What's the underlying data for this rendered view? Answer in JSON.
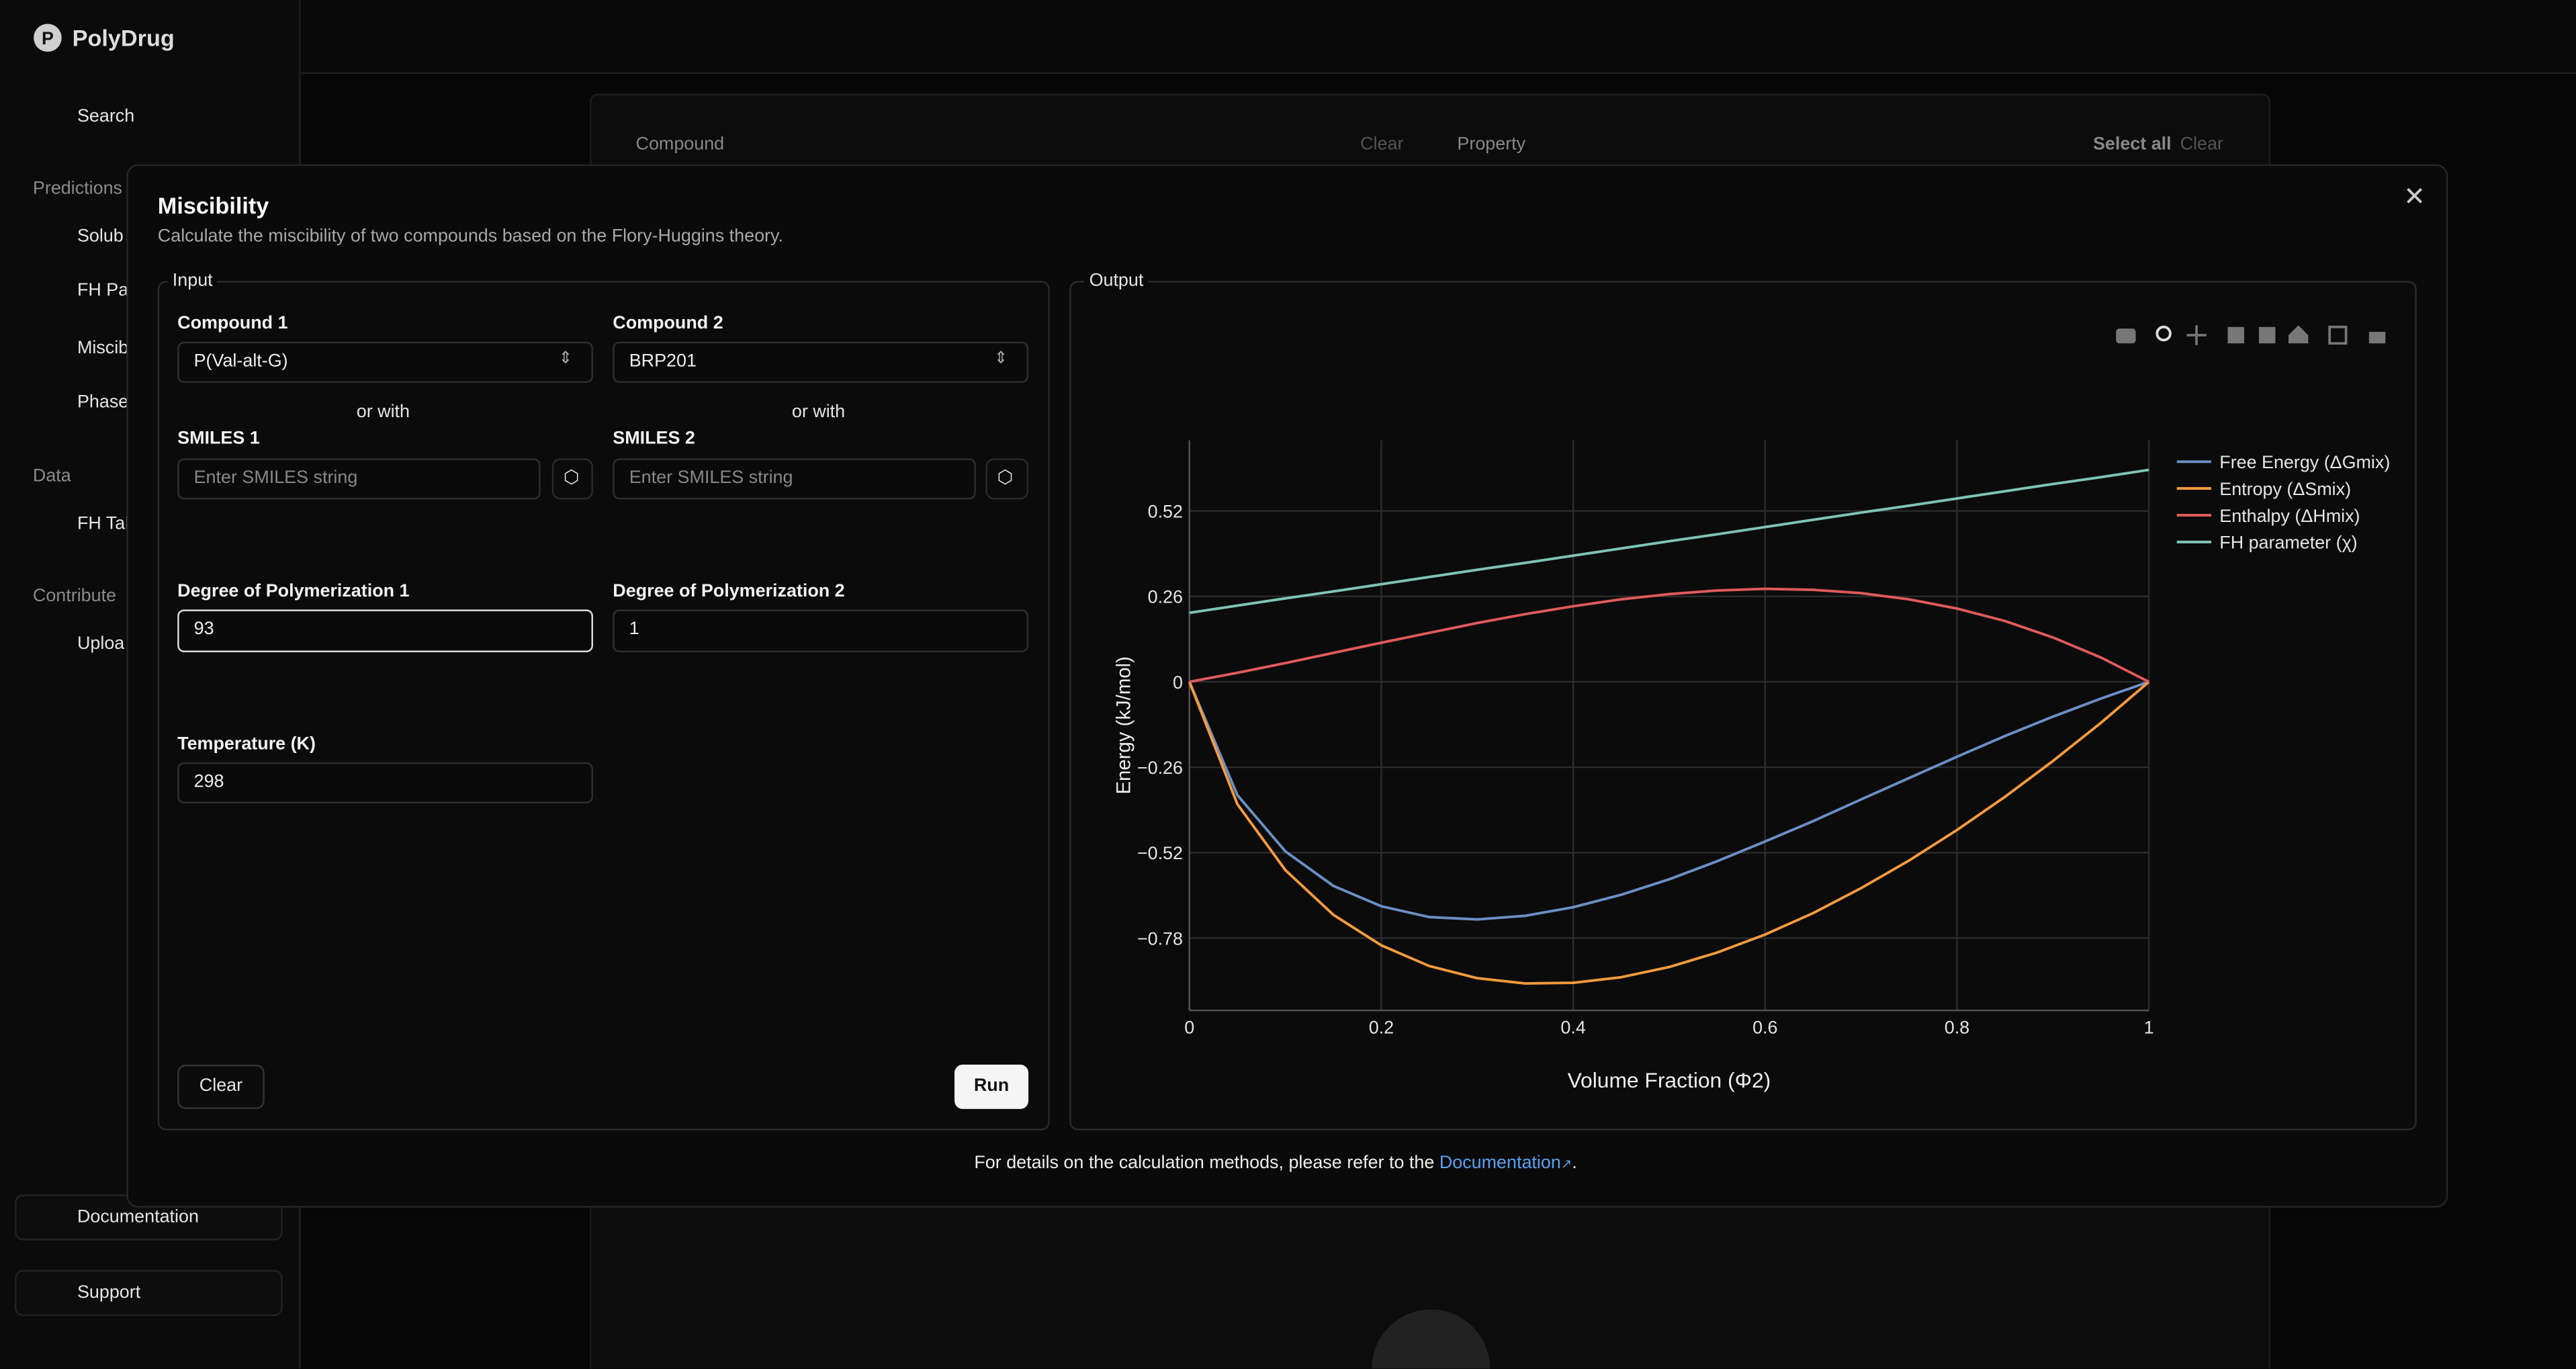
{
  "app": {
    "brand": "PolyDrug",
    "search": "Search",
    "predictions": "Predictions",
    "nav": [
      "Solub",
      "FH Pa",
      "Miscib",
      "Phase"
    ],
    "data": "Data",
    "data_nav": "FH Tal",
    "contribute": "Contribute",
    "upload": "Uploa",
    "documentation": "Documentation",
    "support": "Support"
  },
  "background": {
    "compound": "Compound",
    "clear_1": "Clear",
    "property": "Property",
    "select_all": "Select all",
    "clear_2": "Clear"
  },
  "modal": {
    "title": "Miscibility",
    "description": "Calculate the miscibility of two compounds based on the Flory-Huggins theory.",
    "input": "Input",
    "output": "Output",
    "compound_1": {
      "label": "Compound 1",
      "value": "P(Val-alt-G)"
    },
    "compound_2": {
      "label": "Compound 2",
      "value": "BRP201"
    },
    "or_with": "or with",
    "smiles_1": {
      "label": "SMILES 1",
      "placeholder": "Enter SMILES string"
    },
    "smiles_2": {
      "label": "SMILES 2",
      "placeholder": "Enter SMILES string"
    },
    "dop_1": {
      "label": "Degree of Polymerization 1",
      "value": "93"
    },
    "dop_2": {
      "label": "Degree of Polymerization 2",
      "value": "1"
    },
    "temperature": {
      "label": "Temperature (K)",
      "value": "298"
    },
    "clear": "Clear",
    "run": "Run",
    "footer": "For details on the calculation methods, please refer to the",
    "footer_link": "Documentation",
    "footer_end": "."
  },
  "chart_data": {
    "type": "line",
    "xlabel": "Volume Fraction (Φ2)",
    "ylabel": "Energy (kJ/mol)",
    "x": [
      0,
      0.05,
      0.1,
      0.15,
      0.2,
      0.25,
      0.3,
      0.35,
      0.4,
      0.45,
      0.5,
      0.55,
      0.6,
      0.65,
      0.7,
      0.75,
      0.8,
      0.85,
      0.9,
      0.95,
      1
    ],
    "series": [
      {
        "name": "Free Energy (ΔGmix)",
        "color": "#6b8fc4",
        "values": [
          0,
          -0.345,
          -0.516,
          -0.621,
          -0.683,
          -0.716,
          -0.723,
          -0.712,
          -0.686,
          -0.648,
          -0.601,
          -0.546,
          -0.486,
          -0.424,
          -0.358,
          -0.293,
          -0.228,
          -0.165,
          -0.106,
          -0.051,
          0
        ]
      },
      {
        "name": "Entropy (ΔSmix)",
        "color": "#f49a3c",
        "values": [
          0,
          -0.3725,
          -0.573,
          -0.709,
          -0.802,
          -0.865,
          -0.902,
          -0.918,
          -0.916,
          -0.899,
          -0.868,
          -0.824,
          -0.769,
          -0.704,
          -0.628,
          -0.544,
          -0.451,
          -0.35,
          -0.241,
          -0.125,
          0
        ]
      },
      {
        "name": "Enthalpy (ΔHmix)",
        "color": "#e05a5a",
        "values": [
          0,
          0.0275,
          0.057,
          0.088,
          0.119,
          0.149,
          0.179,
          0.206,
          0.23,
          0.251,
          0.267,
          0.278,
          0.283,
          0.28,
          0.27,
          0.251,
          0.223,
          0.185,
          0.135,
          0.074,
          0
        ]
      },
      {
        "name": "FH parameter (χ)",
        "color": "#7fc3b8",
        "values": [
          0.21,
          0.232,
          0.254,
          0.275,
          0.297,
          0.319,
          0.341,
          0.362,
          0.384,
          0.406,
          0.428,
          0.449,
          0.471,
          0.493,
          0.515,
          0.536,
          0.558,
          0.58,
          0.602,
          0.623,
          0.645
        ]
      }
    ],
    "xlim": [
      0,
      1
    ],
    "ylim": [
      -1,
      0.735
    ],
    "xticks": [
      0,
      0.2,
      0.4,
      0.6,
      0.8,
      1
    ],
    "yticks": [
      {
        "value": -0.78,
        "label": "−0.78"
      },
      {
        "value": -0.52,
        "label": "−0.52"
      },
      {
        "value": -0.26,
        "label": "−0.26"
      },
      0,
      0.26,
      0.52
    ],
    "grid": true
  }
}
